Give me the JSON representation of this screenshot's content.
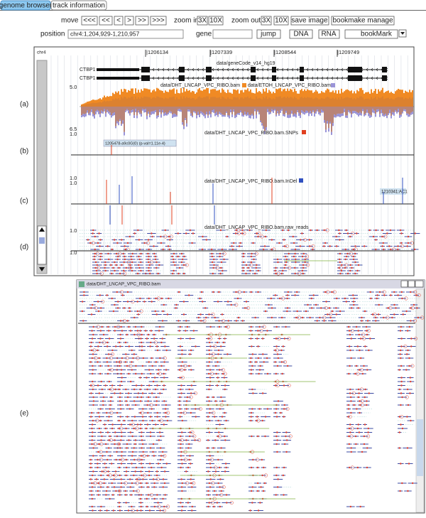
{
  "tabs": [
    "genome browser",
    "track information"
  ],
  "toolbar": {
    "move_label": "move",
    "move_buttons": [
      "<<<",
      "<<",
      "<",
      ">",
      ">>",
      ">>>"
    ],
    "zoom_in_label": "zoom in",
    "zoom_in_buttons": [
      "3X",
      "10X"
    ],
    "zoom_out_label": "zoom out",
    "zoom_out_buttons": [
      "3X",
      "10X"
    ],
    "save_image": "save image",
    "bookmark_manage": "bookmake manage"
  },
  "search": {
    "position_label": "position",
    "position_value": "chr4:1,204,929-1,210,957",
    "gene_label": "gene",
    "jump": "jump",
    "dna": "DNA",
    "rna": "RNA",
    "bookmark": "bookMark"
  },
  "browser": {
    "chromosome": "chr4",
    "ruler": [
      "|1206134",
      "|1207339",
      "|1208544",
      "|1209749"
    ],
    "gene_track": {
      "title": "data/geneCode_v14_hg19",
      "genes": [
        "CTBP1",
        "CTBP1"
      ]
    },
    "coverage_track": {
      "titles": [
        "data/DHT_LNCAP_VPC_RIBO.bam",
        "data/ETOH_LNCAP_VPC_RIBO.bam"
      ],
      "scale_top": "5.0",
      "scale_bottom": "6.5"
    },
    "snp_track": {
      "title": "data/DHT_LNCAP_VPC_RIBO.bam.SNPs",
      "scale": "1.0",
      "annotation": "1205478-a9c0G(0) (p-val=1.11e-4)"
    },
    "indel_track": {
      "title": "data/DHT_LNCAP_VPC_RIBO.bam.InDel",
      "scales": [
        "1.0",
        "1.0"
      ],
      "annotation": "1210341:AC1"
    },
    "reads_track": {
      "title": "data/DHT_LNCAP_VPC_RIBO.bam.raw_reads",
      "scales": [
        "1.0",
        "1.0"
      ]
    }
  },
  "panel_labels": [
    "(a)",
    "(b)",
    "(c)",
    "(d)",
    "(e)"
  ],
  "popup": {
    "title": "data/DHT_LNCAP_VPC_RIBO.bam"
  }
}
